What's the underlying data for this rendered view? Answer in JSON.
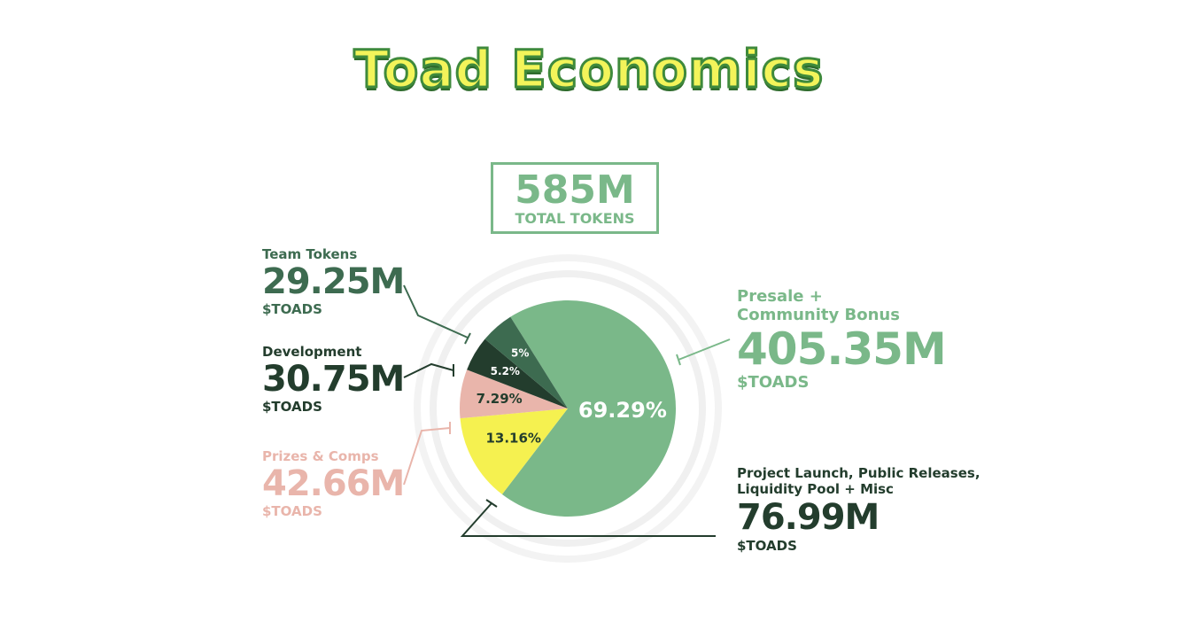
{
  "title": "Toad Economics",
  "total": {
    "value": "585M",
    "label": "TOTAL TOKENS"
  },
  "colors": {
    "presale": "#7ab889",
    "launch": "#f5f150",
    "prizes": "#e9b5ab",
    "development": "#233d2d",
    "team": "#3d6b50",
    "title_fill": "#f3f45a",
    "title_outline": "#3f8a3c"
  },
  "labels": {
    "team": {
      "name": "Team Tokens",
      "value": "29.25M",
      "unit": "$TOADS"
    },
    "development": {
      "name": "Development",
      "value": "30.75M",
      "unit": "$TOADS"
    },
    "prizes": {
      "name": "Prizes & Comps",
      "value": "42.66M",
      "unit": "$TOADS"
    },
    "presale": {
      "name_line1": "Presale +",
      "name_line2": "Community Bonus",
      "value": "405.35M",
      "unit": "$TOADS"
    },
    "launch": {
      "name_line1": "Project Launch, Public Releases,",
      "name_line2": "Liquidity Pool + Misc",
      "value": "76.99M",
      "unit": "$TOADS"
    }
  },
  "chart_data": {
    "type": "pie",
    "title": "Toad Economics",
    "categories": [
      "Presale + Community Bonus",
      "Project Launch, Public Releases, Liquidity Pool + Misc",
      "Prizes & Comps",
      "Development",
      "Team Tokens"
    ],
    "values": [
      405.35,
      76.99,
      42.66,
      30.75,
      29.25
    ],
    "percent_labels": [
      "69.29%",
      "13.16%",
      "7.29%",
      "5.2%",
      "5%"
    ],
    "unit": "$TOADS",
    "total": 585
  }
}
